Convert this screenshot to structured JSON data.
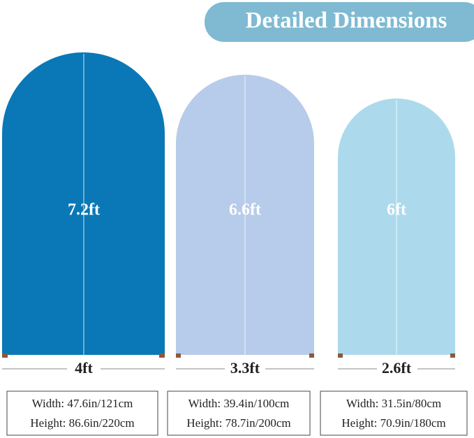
{
  "header": {
    "title": "Detailed Dimensions"
  },
  "arches": [
    {
      "height": "7.2ft",
      "width": "4ft",
      "specs": [
        "Width: 47.6in/121cm",
        "Height: 86.6in/220cm"
      ]
    },
    {
      "height": "6.6ft",
      "width": "3.3ft",
      "specs": [
        "Width: 39.4in/100cm",
        "Height: 78.7in/200cm"
      ]
    },
    {
      "height": "6ft",
      "width": "2.6ft",
      "specs": [
        "Width: 31.5in/80cm",
        "Height: 70.9in/180cm"
      ]
    }
  ]
}
